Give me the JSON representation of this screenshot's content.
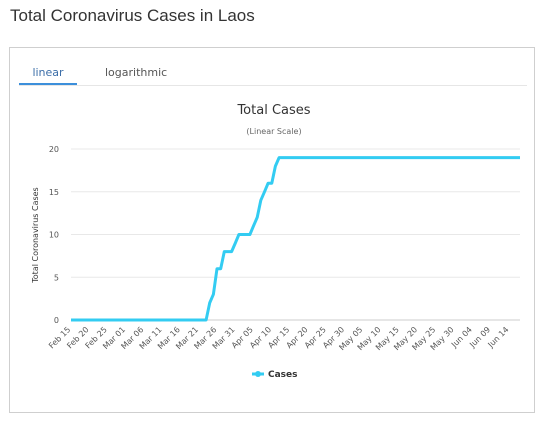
{
  "page": {
    "title": "Total Coronavirus Cases in Laos"
  },
  "tabs": [
    {
      "label": "linear",
      "active": true
    },
    {
      "label": "logarithmic",
      "active": false
    }
  ],
  "colors": {
    "series": "#33ccf2",
    "tab_active": "#3c8fdb",
    "grid": "#e8e8e8"
  },
  "chart_data": {
    "type": "line",
    "title": "Total Cases",
    "subtitle": "(Linear Scale)",
    "xlabel": "",
    "ylabel": "Total Coronavirus Cases",
    "ylim": [
      0,
      20
    ],
    "yticks": [
      0,
      5,
      10,
      15,
      20
    ],
    "grid": true,
    "legend_position": "bottom",
    "x_tick_labels": [
      "Feb 15",
      "Feb 20",
      "Feb 25",
      "Mar 01",
      "Mar 06",
      "Mar 11",
      "Mar 16",
      "Mar 21",
      "Mar 26",
      "Mar 31",
      "Apr 05",
      "Apr 10",
      "Apr 15",
      "Apr 20",
      "Apr 25",
      "Apr 30",
      "May 05",
      "May 10",
      "May 15",
      "May 20",
      "May 25",
      "May 30",
      "Jun 04",
      "Jun 09",
      "Jun 14"
    ],
    "x_range": [
      "Feb 15",
      "Jun 17"
    ],
    "series": [
      {
        "name": "Cases",
        "points": [
          [
            "Feb 15",
            0
          ],
          [
            "Mar 23",
            0
          ],
          [
            "Mar 24",
            2
          ],
          [
            "Mar 25",
            3
          ],
          [
            "Mar 26",
            6
          ],
          [
            "Mar 27",
            6
          ],
          [
            "Mar 28",
            8
          ],
          [
            "Mar 29",
            8
          ],
          [
            "Mar 30",
            8
          ],
          [
            "Mar 31",
            9
          ],
          [
            "Apr 01",
            10
          ],
          [
            "Apr 02",
            10
          ],
          [
            "Apr 03",
            10
          ],
          [
            "Apr 04",
            10
          ],
          [
            "Apr 05",
            11
          ],
          [
            "Apr 06",
            12
          ],
          [
            "Apr 07",
            14
          ],
          [
            "Apr 08",
            15
          ],
          [
            "Apr 09",
            16
          ],
          [
            "Apr 10",
            16
          ],
          [
            "Apr 11",
            18
          ],
          [
            "Apr 12",
            19
          ],
          [
            "Jun 17",
            19
          ]
        ]
      }
    ]
  }
}
